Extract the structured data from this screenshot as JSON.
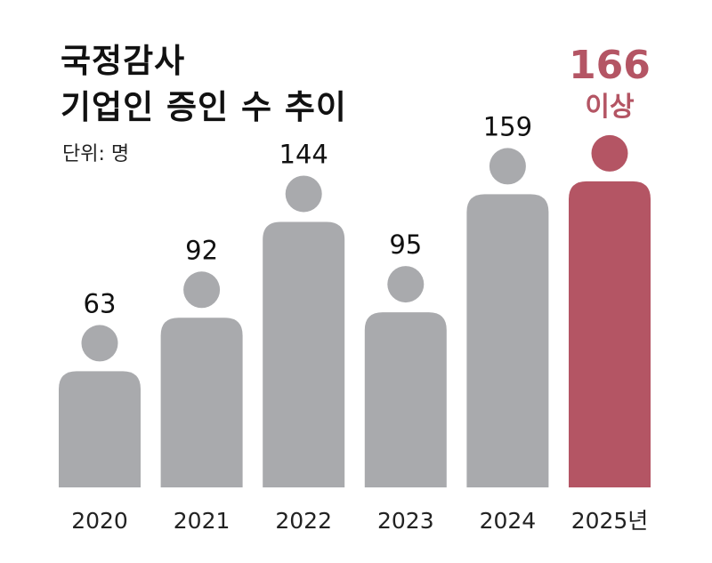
{
  "title_lines": [
    "국정감사",
    "기업인 증인 수 추이"
  ],
  "unit": "단위: 명",
  "colors": {
    "bar": "#a9aaad",
    "highlight": "#b45564",
    "text": "#111111"
  },
  "chart_data": {
    "type": "bar",
    "title": "국정감사 기업인 증인 수 추이",
    "categories": [
      "2020",
      "2021",
      "2022",
      "2023",
      "2024",
      "2025년"
    ],
    "values": [
      63,
      92,
      144,
      95,
      159,
      166
    ],
    "value_labels": [
      "63",
      "92",
      "144",
      "95",
      "159",
      "166"
    ],
    "highlight_index": 5,
    "highlight_note": "이상",
    "ylim": [
      0,
      166
    ],
    "grid": false,
    "legend": "none"
  }
}
